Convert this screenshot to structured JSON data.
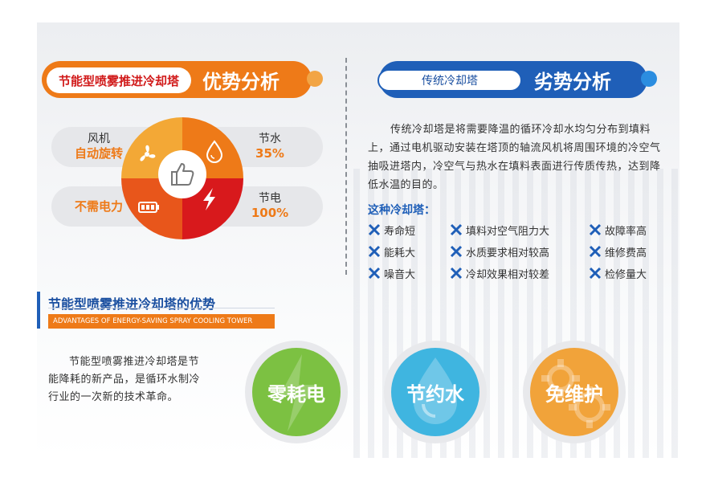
{
  "left_section": {
    "pill_label": "节能型喷雾推进冷却塔",
    "title": "优势分析",
    "features": [
      {
        "label": "风机",
        "highlight": "自动旋转"
      },
      {
        "label": "节水",
        "highlight": "35%"
      },
      {
        "label": "",
        "highlight": "不需电力"
      },
      {
        "label": "节电",
        "highlight": "100%"
      }
    ],
    "icons": [
      "fan-icon",
      "water-drop-icon",
      "battery-icon",
      "lightning-icon",
      "thumbs-up-icon"
    ],
    "colors": {
      "q1": "#f3a836",
      "q2": "#ee7a18",
      "q3": "#e8561b",
      "q4": "#d8191c"
    }
  },
  "right_section": {
    "pill_label": "传统冷却塔",
    "title": "劣势分析",
    "description": "传统冷却塔是将需要降温的循环冷却水均匀分布到填料上，通过电机驱动安装在塔顶的轴流风机将周围环境的冷空气抽吸进塔内，冷空气与热水在填料表面进行传质传热，达到降低水温的目的。",
    "list_title": "这种冷却塔：",
    "disadvantages": [
      "寿命短",
      "填料对空气阻力大",
      "故障率高",
      "能耗大",
      "水质要求相对较高",
      "维修费高",
      "噪音大",
      "冷却效果相对较差",
      "检修量大"
    ]
  },
  "bottom_section": {
    "title": "节能型喷雾推进冷却塔的优势",
    "subtitle": "ADVANTAGES OF ENERGY-SAVING SPRAY COOLING TOWER",
    "description": "节能型喷雾推进冷却塔是节能降耗的新产品，是循环水制冷行业的一次新的技术革命。",
    "badges": [
      {
        "label": "零耗电",
        "color": "#7cc142"
      },
      {
        "label": "节约水",
        "color": "#3fb5e0"
      },
      {
        "label": "免维护",
        "color": "#f1a33a"
      }
    ]
  }
}
